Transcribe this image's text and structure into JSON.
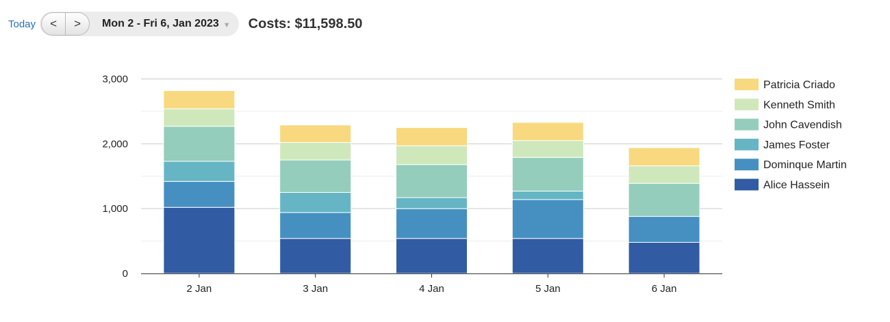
{
  "toolbar": {
    "today_label": "Today",
    "prev_label": "<",
    "next_label": ">",
    "date_range": "Mon 2 - Fri 6, Jan 2023",
    "dropdown_icon": "caret-down-icon",
    "costs_text": "Costs: $11,598.50"
  },
  "chart_data": {
    "type": "bar",
    "stacked": true,
    "categories": [
      "2 Jan",
      "3 Jan",
      "4 Jan",
      "5 Jan",
      "6 Jan"
    ],
    "ylim": [
      0,
      3000
    ],
    "yticks": [
      0,
      1000,
      2000,
      3000
    ],
    "ytick_labels": [
      "0",
      "1,000",
      "2,000",
      "3,000"
    ],
    "grid": true,
    "legend_position": "right",
    "series": [
      {
        "name": "Alice Hassein",
        "color": "#315ca3",
        "values": [
          1020,
          540,
          540,
          540,
          480
        ]
      },
      {
        "name": "Dominque Martin",
        "color": "#4690c1",
        "values": [
          400,
          400,
          460,
          600,
          400
        ]
      },
      {
        "name": "James Foster",
        "color": "#66b5c4",
        "values": [
          310,
          310,
          170,
          130,
          0
        ]
      },
      {
        "name": "John Cavendish",
        "color": "#94cdbc",
        "values": [
          540,
          500,
          510,
          520,
          510
        ]
      },
      {
        "name": "Kenneth Smith",
        "color": "#cfe8bb",
        "values": [
          270,
          270,
          290,
          260,
          270
        ]
      },
      {
        "name": "Patricia Criado",
        "color": "#f8d980",
        "values": [
          280,
          270,
          280,
          280,
          280
        ]
      }
    ]
  }
}
